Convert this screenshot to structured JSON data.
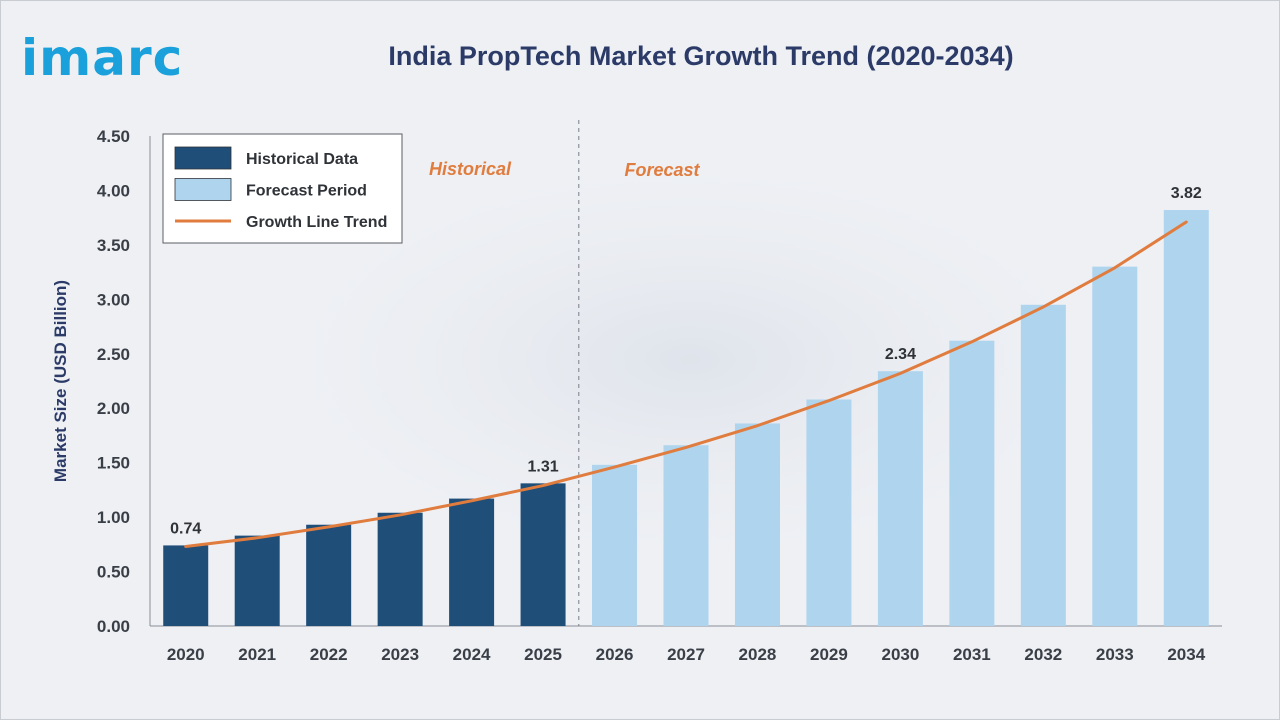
{
  "brand": {
    "logo_text": "imarc"
  },
  "chart_data": {
    "type": "bar",
    "title": "India PropTech Market Growth Trend (2020-2034)",
    "ylabel": "Market Size (USD Billion)",
    "xlabel": "",
    "ylim": [
      0,
      4.5
    ],
    "yticks": [
      "0.00",
      "0.50",
      "1.00",
      "1.50",
      "2.00",
      "2.50",
      "3.00",
      "3.50",
      "4.00",
      "4.50"
    ],
    "categories": [
      "2020",
      "2021",
      "2022",
      "2023",
      "2024",
      "2025",
      "2026",
      "2027",
      "2028",
      "2029",
      "2030",
      "2031",
      "2032",
      "2033",
      "2034"
    ],
    "values": [
      0.74,
      0.83,
      0.93,
      1.04,
      1.17,
      1.31,
      1.48,
      1.66,
      1.86,
      2.08,
      2.34,
      2.62,
      2.95,
      3.3,
      3.82
    ],
    "historical_count": 6,
    "data_labels": [
      {
        "index": 0,
        "text": "0.74"
      },
      {
        "index": 5,
        "text": "1.31"
      },
      {
        "index": 10,
        "text": "2.34"
      },
      {
        "index": 14,
        "text": "3.82"
      }
    ],
    "trend_line": [
      0.73,
      0.81,
      0.91,
      1.02,
      1.15,
      1.29,
      1.46,
      1.64,
      1.84,
      2.07,
      2.32,
      2.61,
      2.93,
      3.29,
      3.71
    ],
    "period_labels": {
      "historical": "Historical",
      "forecast": "Forecast"
    },
    "legend": {
      "placement": "top-left",
      "items": [
        {
          "label": "Historical Data",
          "kind": "bar",
          "color": "#1f4e79"
        },
        {
          "label": "Forecast Period",
          "kind": "bar",
          "color": "#aed4ee"
        },
        {
          "label": "Growth Line Trend",
          "kind": "line",
          "color": "#e07c3e"
        }
      ]
    },
    "colors": {
      "historical": "#1f4e79",
      "forecast": "#aed4ee",
      "trend": "#e07c3e",
      "period_label": "#e07c3e"
    }
  }
}
